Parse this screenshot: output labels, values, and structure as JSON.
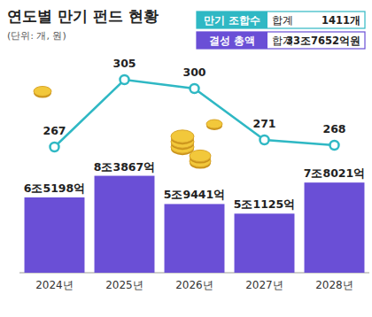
{
  "chart_data": {
    "type": "bar",
    "title": "연도별 만기 펀드 현황",
    "subtitle": "(단위: 개, 원)",
    "categories": [
      "2024년",
      "2025년",
      "2026년",
      "2027년",
      "2028년"
    ],
    "series": [
      {
        "name": "만기 조합수",
        "type": "line",
        "axis": "y2",
        "color": "#2fb8c4",
        "marker": "circle",
        "values": [
          267,
          305,
          300,
          271,
          268
        ],
        "total_caption": "합계",
        "total_label": "1411개"
      },
      {
        "name": "결성 총액",
        "type": "bar",
        "color": "#6a4fd6",
        "values": [
          65198,
          83867,
          59441,
          51125,
          78021
        ],
        "value_labels": [
          "6조5198억",
          "8조3867억",
          "5조9441억",
          "5조1125억",
          "7조8021억"
        ],
        "total_caption": "합계",
        "total_label": "33조7652억원"
      }
    ],
    "ylim": [
      0,
      190000
    ],
    "y2lim": [
      196,
      320
    ],
    "data_labels": true,
    "tick_labels": "x"
  }
}
